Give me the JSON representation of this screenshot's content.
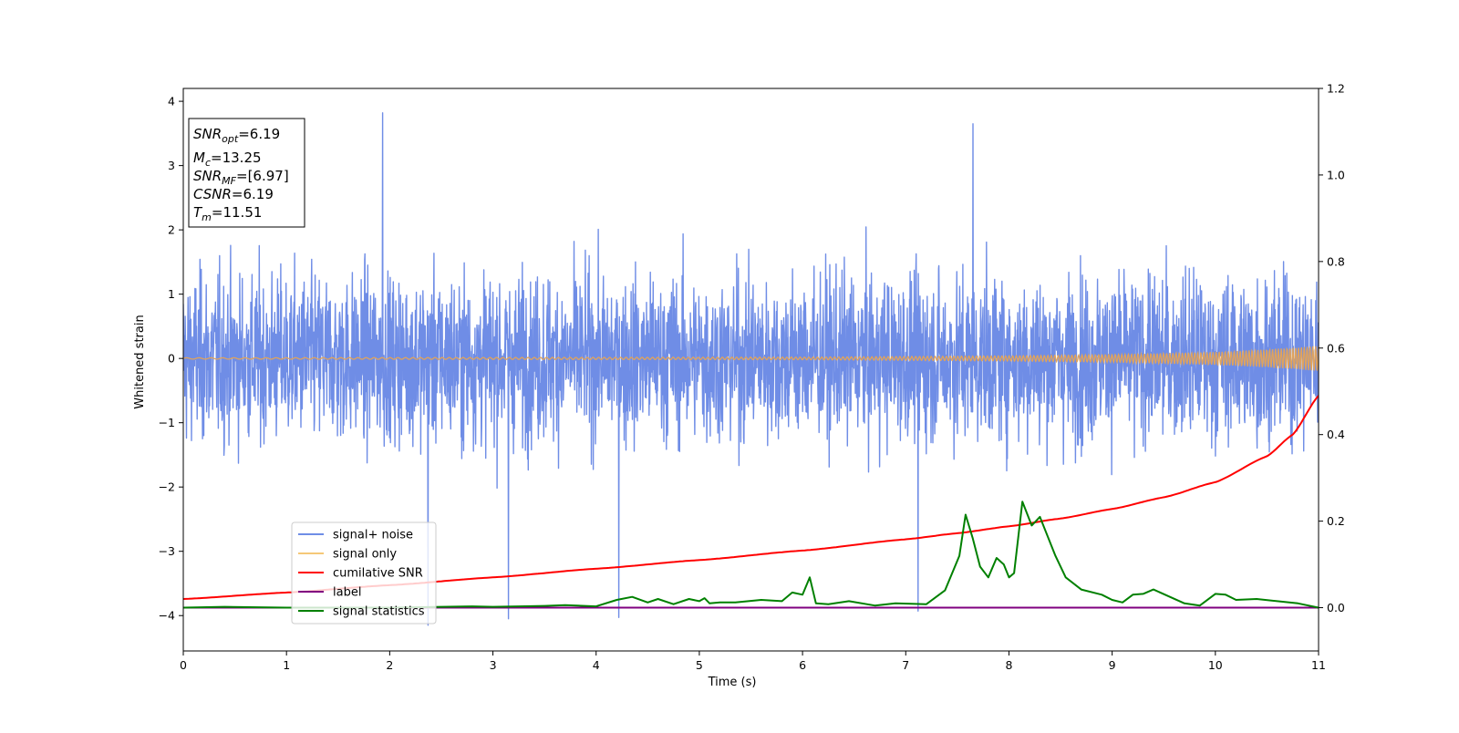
{
  "chart_data": {
    "type": "line",
    "xlabel": "Time (s)",
    "ylabel": "Whitened strain",
    "xlim": [
      0,
      11
    ],
    "ylim": [
      -4.55,
      4.2
    ],
    "y2lim": [
      -0.1,
      1.2
    ],
    "x_ticks": [
      "0",
      "1",
      "2",
      "3",
      "4",
      "5",
      "6",
      "7",
      "8",
      "9",
      "10",
      "11"
    ],
    "y_ticks": [
      "−4",
      "−3",
      "−2",
      "−1",
      "0",
      "1",
      "2",
      "3",
      "4"
    ],
    "y2_ticks": [
      "0.0",
      "0.2",
      "0.4",
      "0.6",
      "0.8",
      "1.0",
      "1.2"
    ],
    "grid": false,
    "legend_position": "lower-left",
    "annotation": [
      {
        "base": "SNR",
        "sub": "opt",
        "value": "=6.19"
      },
      {
        "base": "M",
        "sub": "c",
        "value": "=13.25"
      },
      {
        "base": "SNR",
        "sub": "MF",
        "value": "=[6.97]"
      },
      {
        "base": "CSNR",
        "sub": "",
        "value": "=6.19"
      },
      {
        "base": "T",
        "sub": "m",
        "value": "=11.51"
      }
    ],
    "series": [
      {
        "name": "signal+ noise",
        "axis": "left",
        "color": "#6f8de6",
        "envelope": {
          "min": -4.15,
          "max": 3.82,
          "typical_abs": 2.6
        },
        "notable_spikes": [
          [
            1.93,
            3.82
          ],
          [
            7.65,
            3.65
          ],
          [
            2.37,
            -4.15
          ],
          [
            3.15,
            -4.05
          ],
          [
            4.22,
            -4.03
          ],
          [
            7.12,
            -3.93
          ]
        ]
      },
      {
        "name": "signal only",
        "axis": "left",
        "color": "#f5c878",
        "amplitude": {
          "x": [
            0,
            6,
            8,
            9,
            10,
            10.5,
            11
          ],
          "y": [
            0.01,
            0.02,
            0.04,
            0.06,
            0.1,
            0.14,
            0.2
          ]
        }
      },
      {
        "name": "cumilative SNR",
        "axis": "right",
        "color": "#ff0000",
        "x": [
          0,
          1,
          2,
          3,
          4,
          5,
          6,
          7,
          7.5,
          8,
          8.5,
          9,
          9.5,
          10,
          10.5,
          10.75,
          11
        ],
        "y": [
          0.02,
          0.035,
          0.052,
          0.07,
          0.09,
          0.11,
          0.132,
          0.158,
          0.172,
          0.188,
          0.206,
          0.228,
          0.255,
          0.29,
          0.35,
          0.4,
          0.49
        ]
      },
      {
        "name": "label",
        "axis": "right",
        "color": "#800080",
        "x": [
          0,
          11
        ],
        "y": [
          0.0,
          0.0
        ]
      },
      {
        "name": "signal statistics",
        "axis": "right",
        "color": "#008000",
        "x": [
          0,
          0.4,
          1,
          2,
          2.8,
          3,
          3.5,
          3.7,
          4,
          4.2,
          4.35,
          4.5,
          4.6,
          4.75,
          4.9,
          5,
          5.05,
          5.1,
          5.2,
          5.35,
          5.6,
          5.8,
          5.9,
          6,
          6.07,
          6.13,
          6.25,
          6.45,
          6.7,
          6.9,
          7.2,
          7.38,
          7.45,
          7.52,
          7.58,
          7.65,
          7.72,
          7.8,
          7.88,
          7.95,
          8.0,
          8.05,
          8.13,
          8.22,
          8.3,
          8.45,
          8.55,
          8.7,
          8.9,
          9.0,
          9.1,
          9.2,
          9.3,
          9.4,
          9.7,
          9.85,
          10.0,
          10.1,
          10.2,
          10.4,
          10.8,
          11
        ],
        "y": [
          0.0,
          0.002,
          0.0,
          0.0,
          0.003,
          0.002,
          0.004,
          0.006,
          0.003,
          0.018,
          0.025,
          0.012,
          0.02,
          0.008,
          0.02,
          0.015,
          0.022,
          0.01,
          0.012,
          0.012,
          0.018,
          0.015,
          0.035,
          0.03,
          0.07,
          0.01,
          0.008,
          0.015,
          0.005,
          0.01,
          0.008,
          0.04,
          0.08,
          0.12,
          0.215,
          0.16,
          0.095,
          0.07,
          0.115,
          0.1,
          0.07,
          0.08,
          0.245,
          0.19,
          0.21,
          0.12,
          0.07,
          0.042,
          0.03,
          0.018,
          0.012,
          0.03,
          0.032,
          0.042,
          0.01,
          0.005,
          0.032,
          0.03,
          0.018,
          0.02,
          0.01,
          0.0
        ]
      }
    ]
  }
}
